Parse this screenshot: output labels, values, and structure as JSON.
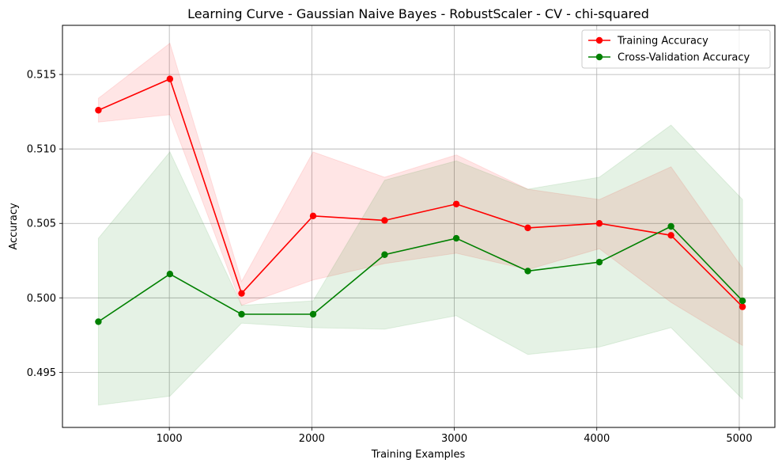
{
  "chart_data": {
    "type": "line",
    "title": "Learning Curve - Gaussian Naive Bayes - RobustScaler - CV - chi-squared",
    "xlabel": "Training Examples",
    "ylabel": "Accuracy",
    "xlim": [
      250,
      5250
    ],
    "ylim": [
      0.4913,
      0.5183
    ],
    "xticks": [
      1000,
      2000,
      3000,
      4000,
      5000
    ],
    "yticks": [
      0.495,
      0.5,
      0.505,
      0.51,
      0.515
    ],
    "ytick_labels": [
      "0.495",
      "0.500",
      "0.505",
      "0.510",
      "0.515"
    ],
    "grid": true,
    "legend_position": "top-right",
    "x": [
      502,
      1004,
      1507,
      2009,
      2511,
      3014,
      3516,
      4018,
      4521,
      5023
    ],
    "series": [
      {
        "name": "Training Accuracy",
        "color": "#ff0000",
        "fill_color": "#ff0000",
        "values": [
          0.5126,
          0.5147,
          0.5003,
          0.5055,
          0.5052,
          0.5063,
          0.5047,
          0.505,
          0.5042,
          0.4994
        ],
        "lower": [
          0.5118,
          0.5123,
          0.4995,
          0.5012,
          0.5023,
          0.503,
          0.5019,
          0.5033,
          0.4997,
          0.4968
        ],
        "upper": [
          0.5134,
          0.5171,
          0.5011,
          0.5098,
          0.5081,
          0.5096,
          0.5073,
          0.5066,
          0.5088,
          0.502
        ]
      },
      {
        "name": "Cross-Validation Accuracy",
        "color": "#008000",
        "fill_color": "#008000",
        "values": [
          0.4984,
          0.5016,
          0.4989,
          0.4989,
          0.5029,
          0.504,
          0.5018,
          0.5024,
          0.5048,
          0.4998
        ],
        "lower": [
          0.4928,
          0.4934,
          0.4983,
          0.498,
          0.4979,
          0.4988,
          0.4962,
          0.4967,
          0.498,
          0.4932
        ],
        "upper": [
          0.504,
          0.5098,
          0.4995,
          0.4998,
          0.5079,
          0.5092,
          0.5073,
          0.5081,
          0.5116,
          0.5066
        ]
      }
    ]
  }
}
